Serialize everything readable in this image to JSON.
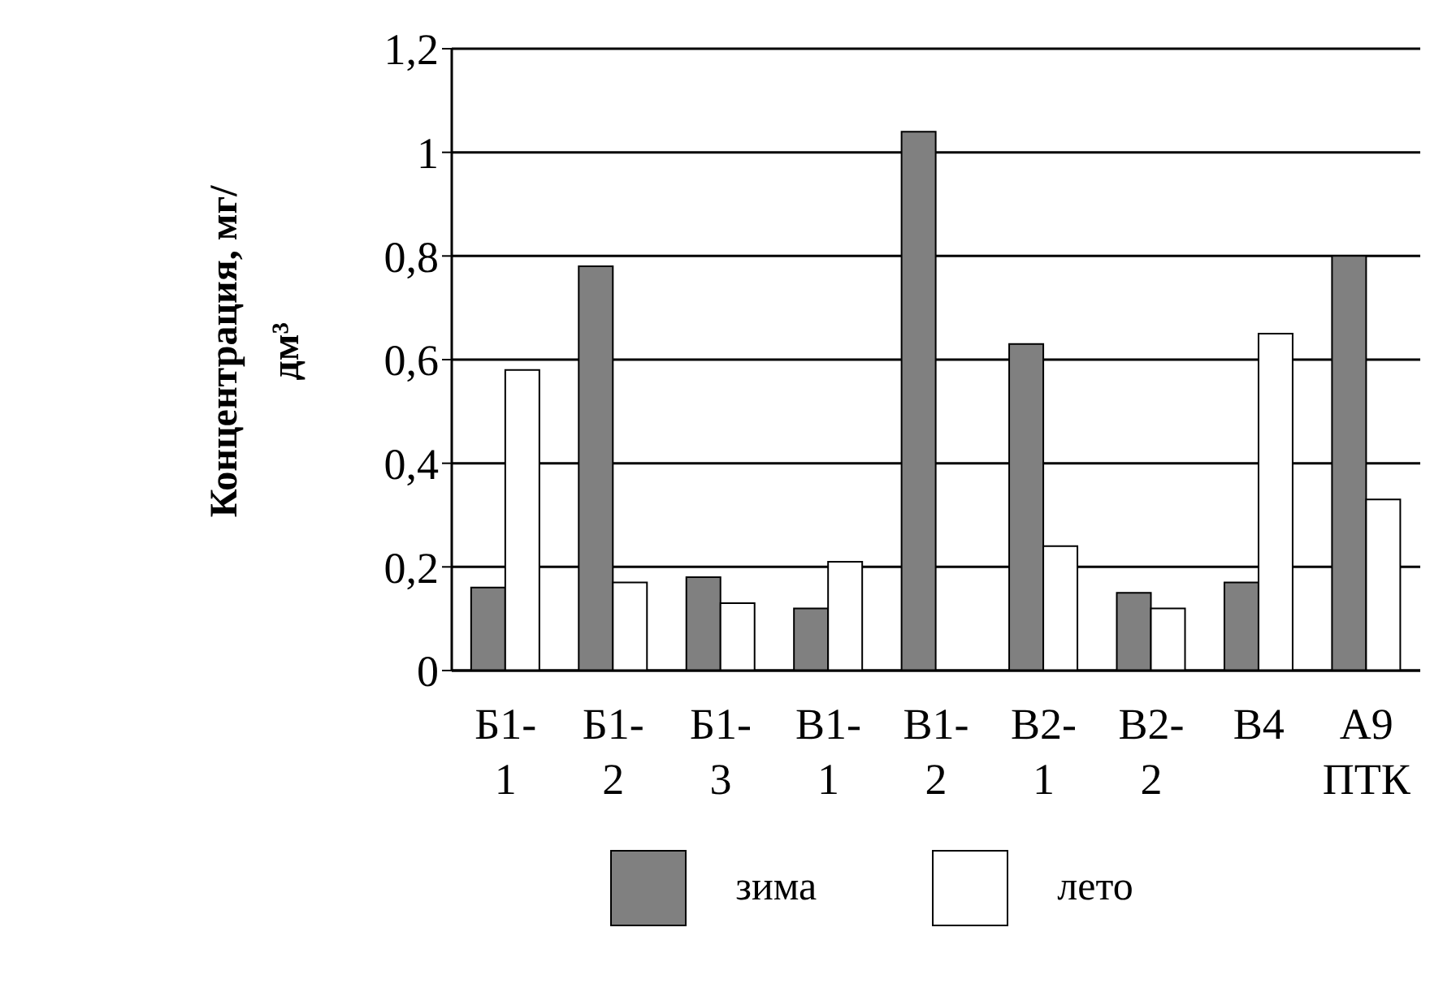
{
  "chart_data": {
    "type": "bar",
    "ylabel": "Концентрация, мг/дм³",
    "categories": [
      "Б1-1",
      "Б1-2",
      "Б1-3",
      "В1-1",
      "В1-2",
      "В2-1",
      "В2-2",
      "В4",
      "А9 ПТК"
    ],
    "series": [
      {
        "name": "зима",
        "color": "#808080",
        "values": [
          0.16,
          0.78,
          0.18,
          0.12,
          1.04,
          0.63,
          0.15,
          0.17,
          0.8
        ]
      },
      {
        "name": "лето",
        "color": "#ffffff",
        "values": [
          0.58,
          0.17,
          0.13,
          0.21,
          null,
          0.24,
          0.12,
          0.65,
          0.33
        ]
      }
    ],
    "ylim": [
      0,
      1.2
    ],
    "yticks": [
      0,
      {
        "value": 0.2,
        "label": "0,2"
      },
      {
        "value": 0.4,
        "label": "0,4"
      },
      {
        "value": 0.6,
        "label": "0,6"
      },
      {
        "value": 0.8,
        "label": "0,8"
      },
      1,
      {
        "value": 1.2,
        "label": "1,2"
      }
    ],
    "grid": "y",
    "legend": "bottom"
  }
}
